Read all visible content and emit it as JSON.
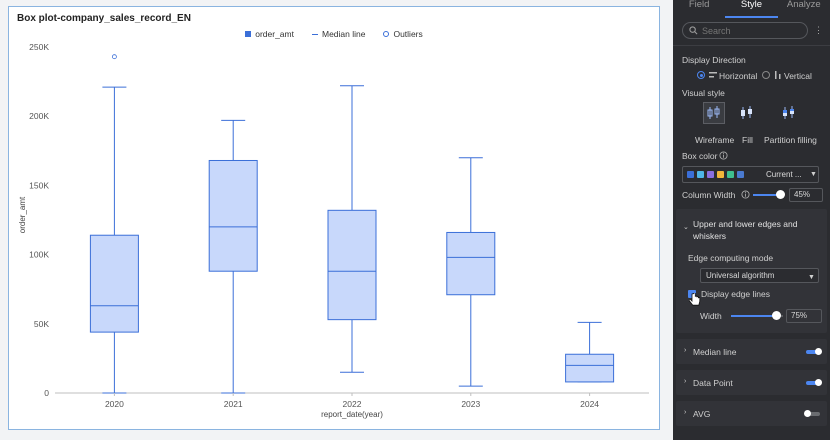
{
  "chart": {
    "title": "Box plot-company_sales_record_EN",
    "legend": [
      "order_amt",
      "Median line",
      "Outliers"
    ]
  },
  "chart_data": {
    "type": "box",
    "title": "Box plot-company_sales_record_EN",
    "xlabel": "report_date(year)",
    "ylabel": "order_amt",
    "categories": [
      "2020",
      "2021",
      "2022",
      "2023",
      "2024"
    ],
    "yticks": [
      "0",
      "50K",
      "100K",
      "150K",
      "200K",
      "250K"
    ],
    "ylim": [
      0,
      250000
    ],
    "boxes": [
      {
        "min": 0,
        "q1": 44000,
        "median": 63000,
        "q3": 114000,
        "max": 221000
      },
      {
        "min": 0,
        "q1": 88000,
        "median": 120000,
        "q3": 168000,
        "max": 197000
      },
      {
        "min": 15000,
        "q1": 53000,
        "median": 88000,
        "q3": 132000,
        "max": 222000
      },
      {
        "min": 5000,
        "q1": 71000,
        "median": 98000,
        "q3": 116000,
        "max": 170000
      },
      {
        "min": 8000,
        "q1": 8000,
        "median": 20000,
        "q3": 28000,
        "max": 51000
      }
    ],
    "outliers": [
      {
        "category": "2020",
        "value": 243000
      }
    ],
    "colors": {
      "fill": "#c8d8fb",
      "stroke": "#3b6fd8"
    },
    "legend_position": "top-center",
    "grid": false
  },
  "panel": {
    "tabs": [
      "Field",
      "Style",
      "Analyze"
    ],
    "active_tab": "Style",
    "search_placeholder": "Search",
    "display_direction": {
      "label": "Display Direction",
      "options": [
        "Horizontal",
        "Vertical"
      ],
      "selected": "Horizontal"
    },
    "visual_style": {
      "label": "Visual style",
      "options": [
        "Wireframe",
        "Fill",
        "Partition filling"
      ],
      "selected": "Wireframe"
    },
    "box_color": {
      "label": "Box color",
      "swatches": [
        "#3b6fd8",
        "#4fb6e8",
        "#8a6fe0",
        "#f2b53a",
        "#3fbf8f",
        "#4a7ad0"
      ],
      "selected": "Current ..."
    },
    "column_width": {
      "label": "Column Width",
      "value": "45%",
      "level": 0.45
    },
    "edges_section": {
      "title": "Upper and lower edges and whiskers",
      "mode_label": "Edge computing mode",
      "mode_value": "Universal algorithm",
      "display_label": "Display edge lines",
      "width_label": "Width",
      "width_value": "75%",
      "width_level": 0.75
    },
    "sections": [
      {
        "title": "Median line",
        "on": true
      },
      {
        "title": "Data Point",
        "on": true
      },
      {
        "title": "AVG",
        "on": false
      }
    ]
  }
}
